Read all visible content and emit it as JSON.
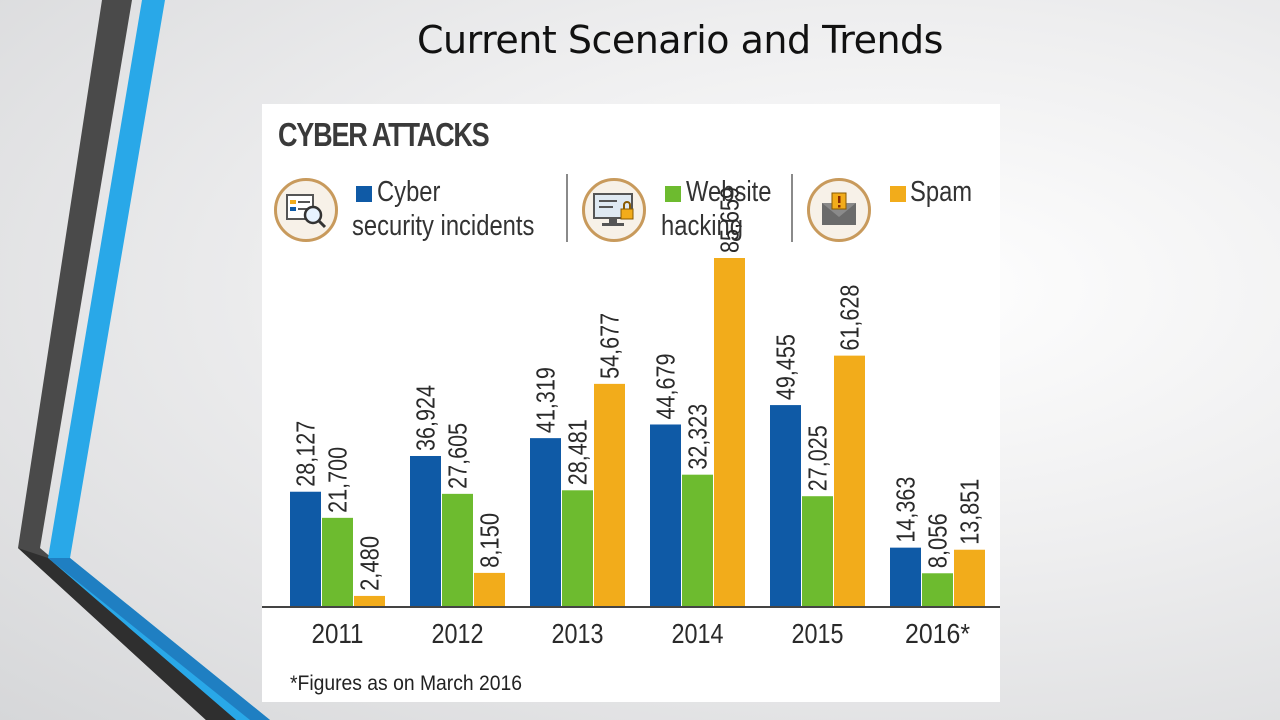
{
  "slide": {
    "title": "Current Scenario and Trends"
  },
  "colors": {
    "cyber": "#0f5aa6",
    "website": "#6dbb2f",
    "spam": "#f2ac1b",
    "accent_blue": "#29a8e8",
    "accent_dark": "#4a4a4a"
  },
  "legend": {
    "cyber_line1": "Cyber",
    "cyber_line2": "security incidents",
    "website_line1": "Website",
    "website_line2": "hacking",
    "spam": "Spam"
  },
  "icons": [
    "magnifier-document-icon",
    "monitor-lock-icon",
    "envelope-alert-icon"
  ],
  "footnote": "*Figures as on March 2016",
  "chart_data": {
    "type": "bar",
    "title": "CYBER ATTACKS",
    "categories": [
      "2011",
      "2012",
      "2013",
      "2014",
      "2015",
      "2016*"
    ],
    "series": [
      {
        "name": "Cyber security incidents",
        "color": "#0f5aa6",
        "values": [
          28127,
          36924,
          41319,
          44679,
          49455,
          14363
        ],
        "labels": [
          "28,127",
          "36,924",
          "41,319",
          "44,679",
          "49,455",
          "14,363"
        ]
      },
      {
        "name": "Website hacking",
        "color": "#6dbb2f",
        "values": [
          21700,
          27605,
          28481,
          32323,
          27025,
          8056
        ],
        "labels": [
          "21,700",
          "27,605",
          "28,481",
          "32,323",
          "27,025",
          "8,056"
        ]
      },
      {
        "name": "Spam",
        "color": "#f2ac1b",
        "values": [
          2480,
          8150,
          54677,
          85659,
          61628,
          13851
        ],
        "labels": [
          "2,480",
          "8,150",
          "54,677",
          "85,659",
          "61,628",
          "13,851"
        ]
      }
    ],
    "xlabel": "",
    "ylabel": "",
    "ylim": [
      0,
      85659
    ],
    "grid": false,
    "legend_position": "top",
    "data_labels": "rotated-above-bars"
  }
}
